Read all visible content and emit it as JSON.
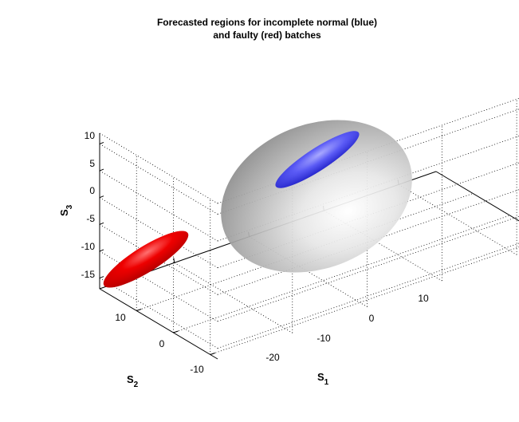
{
  "chart_data": {
    "type": "ellipsoid-3d",
    "title_lines": [
      "Forecasted regions for incomplete normal (blue)",
      "and faulty (red) batches"
    ],
    "xlabel": {
      "main": "S",
      "sub": "1"
    },
    "ylabel": {
      "main": "S",
      "sub": "2"
    },
    "zlabel": {
      "main": "S",
      "sub": "3"
    },
    "x_ticks": [
      -20,
      -10,
      0,
      10
    ],
    "y_ticks": [
      -10,
      0,
      10
    ],
    "z_ticks": [
      -15,
      -10,
      -5,
      0,
      5,
      10
    ],
    "x_tick_labels": [
      "-20",
      "-10",
      "0",
      "10"
    ],
    "y_tick_labels": [
      "-10",
      "0",
      "10"
    ],
    "z_tick_labels": [
      "-15",
      "-10",
      "-5",
      "0",
      "5",
      "10"
    ],
    "xlim": [
      -30,
      15
    ],
    "ylim": [
      -12,
      20
    ],
    "zlim": [
      -17,
      12
    ],
    "grid": true,
    "regions": [
      {
        "color": "#c8c8c8",
        "center": [
          0,
          12,
          -2
        ],
        "orientation": "large translucent confidence region"
      },
      {
        "color": "#4a4af0",
        "center": [
          -2,
          14,
          4
        ],
        "orientation": "normal batches"
      },
      {
        "color": "#ee0000",
        "center": [
          -27,
          4,
          -12
        ],
        "orientation": "faulty batches"
      }
    ]
  }
}
